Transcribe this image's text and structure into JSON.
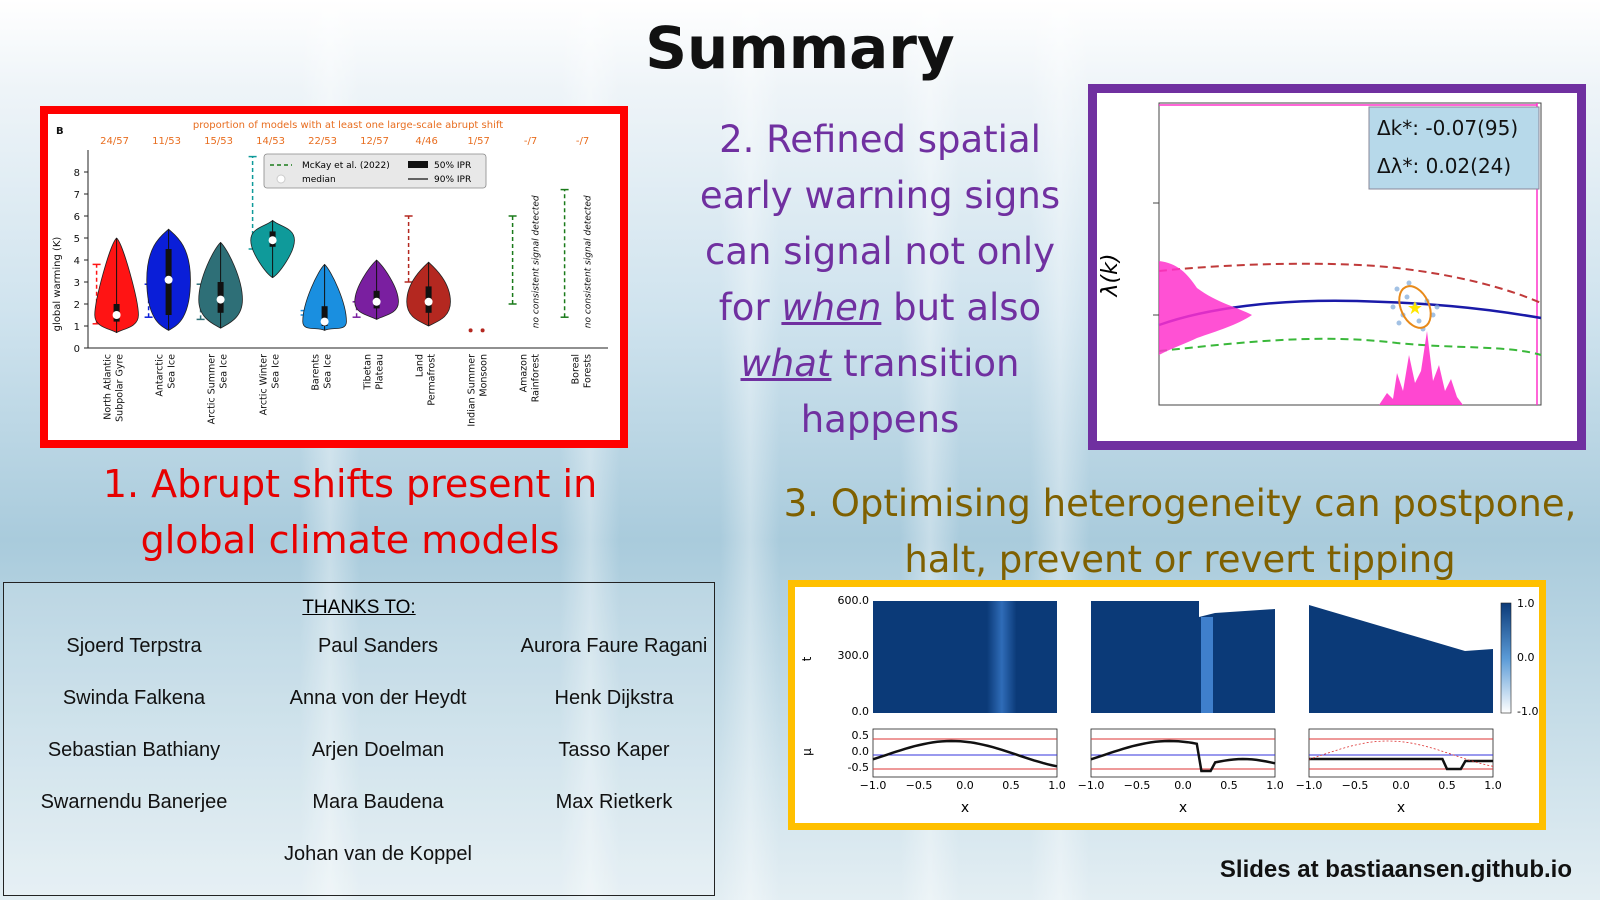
{
  "slide": {
    "title": "Summary",
    "footer": "Slides at bastiaansen.github.io"
  },
  "panel1": {
    "caption": "1. Abrupt shifts present in global climate models",
    "chart_data": {
      "type": "violin",
      "panel_letter": "B",
      "header": "proportion of models with at least one large-scale abrupt shift",
      "ylabel": "global warming (K)",
      "ylim": [
        0,
        9
      ],
      "yticks": [
        "0",
        "1",
        "2",
        "3",
        "4",
        "5",
        "6",
        "7",
        "8"
      ],
      "legend": {
        "mckay": "McKay et al. (2022)",
        "median": "median",
        "ipr50": "50% IPR",
        "ipr90": "90% IPR"
      },
      "no_signal_text": "no consistent signal detected",
      "colors": {
        "header": "#e86d1f"
      },
      "categories": [
        {
          "label": "North Atlantic Subpolar Gyre",
          "frac": "24/57",
          "color": "#ff1414",
          "median": 1.5,
          "q1": 1.2,
          "q3": 2.0,
          "lo": 0.7,
          "hi": 5.0,
          "mk": [
            1.1,
            3.8
          ]
        },
        {
          "label": "Antarctic Sea Ice",
          "frac": "11/53",
          "color": "#0a1ed8",
          "median": 3.1,
          "q1": 1.5,
          "q3": 4.5,
          "lo": 0.8,
          "hi": 5.4,
          "mk": [
            1.4,
            2.9
          ]
        },
        {
          "label": "Arctic Summer Sea Ice",
          "frac": "15/53",
          "color": "#2e6f77",
          "median": 2.2,
          "q1": 1.6,
          "q3": 3.0,
          "lo": 0.9,
          "hi": 4.8,
          "mk": [
            1.3,
            2.9
          ]
        },
        {
          "label": "Arctic Winter Sea Ice",
          "frac": "14/53",
          "color": "#0f9a9a",
          "median": 4.9,
          "q1": 4.6,
          "q3": 5.3,
          "lo": 3.2,
          "hi": 5.8,
          "mk": [
            4.5,
            8.7
          ]
        },
        {
          "label": "Barents Sea Ice",
          "frac": "22/53",
          "color": "#1a8fe0",
          "median": 1.2,
          "q1": 1.0,
          "q3": 1.9,
          "lo": 0.8,
          "hi": 3.8,
          "mk": [
            1.5,
            1.7
          ]
        },
        {
          "label": "Tibetan Plateau",
          "frac": "12/57",
          "color": "#7a1fa0",
          "median": 2.1,
          "q1": 1.8,
          "q3": 2.6,
          "lo": 1.3,
          "hi": 4.0,
          "mk": [
            1.4,
            2.1
          ]
        },
        {
          "label": "Land Permafrost",
          "frac": "4/46",
          "color": "#b42820",
          "median": 2.1,
          "q1": 1.6,
          "q3": 2.8,
          "lo": 1.0,
          "hi": 3.9,
          "mk": [
            3.0,
            6.0
          ]
        },
        {
          "label": "Indian Summer Monsoon",
          "frac": "1/57",
          "color": "#b42820",
          "median": 0.8,
          "q1": 0.8,
          "q3": 0.8,
          "lo": 0.8,
          "hi": 0.8,
          "mk": null
        },
        {
          "label": "Amazon Rainforest",
          "frac": "-/7",
          "color": "#1a7a1a",
          "median": null,
          "q1": null,
          "q3": null,
          "lo": null,
          "hi": null,
          "mk": [
            2.0,
            6.0
          ]
        },
        {
          "label": "Boreal Forests",
          "frac": "-/7",
          "color": "#1a7a1a",
          "median": null,
          "q1": null,
          "q3": null,
          "lo": null,
          "hi": null,
          "mk": [
            1.4,
            7.2
          ]
        }
      ]
    }
  },
  "panel2": {
    "caption_lines": [
      "2. Refined spatial",
      "early warning signs",
      "can signal not only"
    ],
    "line4a": "for ",
    "line4u": "when",
    "line4b": " but also",
    "line5u": "what",
    "line5b": " transition",
    "line6": "happens",
    "chart_data": {
      "type": "line",
      "ylabel": "λ(k)",
      "legend_dk": "Δk*: -0.07(95)",
      "legend_dl": "Δλ*: 0.02(24)",
      "colors": {
        "mean": "#1a1aa8",
        "upper": "#c03a3a",
        "lower": "#3ab83a",
        "hist": "#ff33cc"
      }
    }
  },
  "panel3": {
    "caption": "3. Optimising heterogeneity can postpone, halt, prevent or revert tipping",
    "chart_data": {
      "type": "heatmap",
      "t_label": "t",
      "t_ticks": [
        "600.0",
        "300.0",
        "0.0"
      ],
      "mu_label": "μ",
      "mu_ticks": [
        "0.5",
        "0.0",
        "-0.5"
      ],
      "x_label": "x",
      "x_ticks": [
        "−1.0",
        "−0.5",
        "0.0",
        "0.5",
        "1.0"
      ],
      "colorbar_ticks": [
        "1.0",
        "0.0",
        "-1.0"
      ],
      "colors": {
        "heat": "#0b3a78"
      }
    }
  },
  "thanks": {
    "title": "THANKS TO:",
    "names": [
      "Sjoerd Terpstra",
      "Paul Sanders",
      "Aurora Faure Ragani",
      "Swinda Falkena",
      "Anna von der Heydt",
      "Henk Dijkstra",
      "Sebastian Bathiany",
      "Arjen Doelman",
      "Tasso Kaper",
      "Swarnendu Banerjee",
      "Mara Baudena",
      "Max Rietkerk",
      "Johan van de Koppel"
    ]
  }
}
